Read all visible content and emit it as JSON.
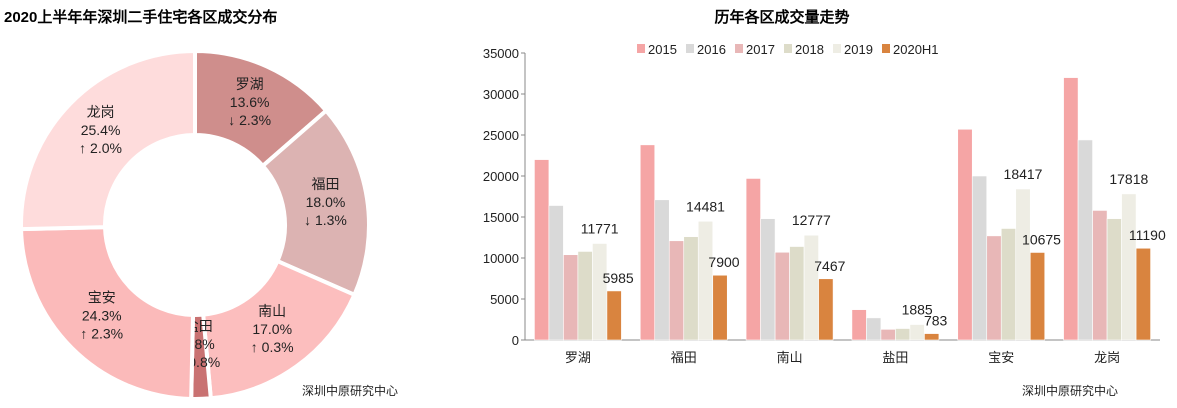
{
  "chart_data": [
    {
      "type": "pie",
      "variant": "donut",
      "title": "2020上半年年深圳二手住宅各区成交分布",
      "source": "深圳中原研究中心",
      "slices": [
        {
          "label": "罗湖",
          "value": 13.6,
          "pct": "13.6%",
          "change": "↓ 2.3%",
          "color": "#cf8e8c"
        },
        {
          "label": "福田",
          "value": 18.0,
          "pct": "18.0%",
          "change": "↓ 1.3%",
          "color": "#dcb3b2"
        },
        {
          "label": "南山",
          "value": 17.0,
          "pct": "17.0%",
          "change": "↑ 0.3%",
          "color": "#fcbebe"
        },
        {
          "label": "盐田",
          "value": 1.8,
          "pct": "1.8%",
          "change": "↓ 0.8%",
          "color": "#c97272"
        },
        {
          "label": "宝安",
          "value": 24.3,
          "pct": "24.3%",
          "change": "↑ 2.3%",
          "color": "#fbbaba"
        },
        {
          "label": "龙岗",
          "value": 25.4,
          "pct": "25.4%",
          "change": "↑ 2.0%",
          "color": "#fedcdc"
        }
      ]
    },
    {
      "type": "bar",
      "title": "历年各区成交量走势",
      "source": "深圳中原研究中心",
      "categories": [
        "罗湖",
        "福田",
        "南山",
        "盐田",
        "宝安",
        "龙岗"
      ],
      "ylim": [
        0,
        35000
      ],
      "yticks": [
        0,
        5000,
        10000,
        15000,
        20000,
        25000,
        30000,
        35000
      ],
      "legend_position": "top",
      "grid": false,
      "series": [
        {
          "name": "2015",
          "color": "#f5a5a5",
          "values": [
            22000,
            23800,
            19700,
            3700,
            25700,
            32000
          ]
        },
        {
          "name": "2016",
          "color": "#d9d9d9",
          "values": [
            16400,
            17100,
            14800,
            2700,
            20000,
            24400
          ]
        },
        {
          "name": "2017",
          "color": "#e8b7b7",
          "values": [
            10400,
            12100,
            10700,
            1300,
            12700,
            15800
          ]
        },
        {
          "name": "2018",
          "color": "#dddcc9",
          "values": [
            10800,
            12600,
            11400,
            1400,
            13600,
            14800
          ]
        },
        {
          "name": "2019",
          "color": "#eeede4",
          "values": [
            11771,
            14481,
            12777,
            1885,
            18417,
            17818
          ],
          "labeled": true
        },
        {
          "name": "2020H1",
          "color": "#d9843f",
          "values": [
            5985,
            7900,
            7467,
            783,
            10675,
            11190
          ],
          "labeled": true
        }
      ]
    }
  ]
}
